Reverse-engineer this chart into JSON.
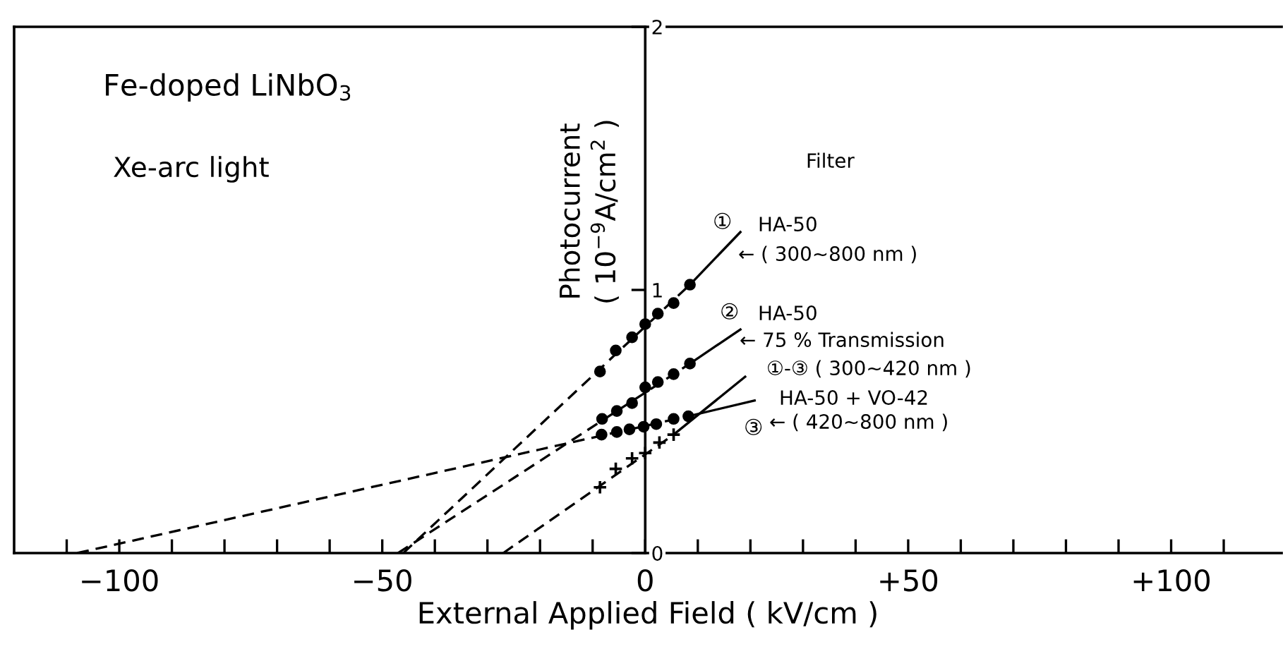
{
  "chart_data": {
    "type": "scatter",
    "xlabel": "External Applied Field ( kV/cm )",
    "ylabel": "Photocurrent\n( 10$^{−9}$A/cm$^{2}$ )",
    "xlim": [
      -120,
      121
    ],
    "ylim": [
      0,
      2
    ],
    "xticks": [
      {
        "value": -110,
        "label": null
      },
      {
        "value": -100,
        "label": "−100"
      },
      {
        "value": -90,
        "label": null
      },
      {
        "value": -80,
        "label": null
      },
      {
        "value": -70,
        "label": null
      },
      {
        "value": -60,
        "label": null
      },
      {
        "value": -50,
        "label": "−50"
      },
      {
        "value": -40,
        "label": null
      },
      {
        "value": -30,
        "label": null
      },
      {
        "value": -20,
        "label": null
      },
      {
        "value": -10,
        "label": null
      },
      0,
      {
        "value": 10,
        "label": null
      },
      {
        "value": 20,
        "label": null
      },
      {
        "value": 30,
        "label": null
      },
      {
        "value": 40,
        "label": null
      },
      {
        "value": 50,
        "label": "+50"
      },
      {
        "value": 60,
        "label": null
      },
      {
        "value": 70,
        "label": null
      },
      {
        "value": 80,
        "label": null
      },
      {
        "value": 90,
        "label": null
      },
      {
        "value": 100,
        "label": "+100"
      },
      {
        "value": 110,
        "label": null
      }
    ],
    "yticks": [
      0,
      1,
      2
    ],
    "grid": false,
    "legend": false,
    "series": [
      {
        "marker": "circle",
        "color": "#000000",
        "x": [
          -8.6,
          -5.6,
          -2.5,
          0,
          2.4,
          5.4,
          8.5
        ],
        "values": [
          0.69,
          0.77,
          0.82,
          0.87,
          0.91,
          0.95,
          1.02
        ]
      },
      {
        "marker": "circle",
        "color": "#000000",
        "x": [
          -8.2,
          -5.4,
          -2.5,
          0,
          2.4,
          5.4,
          8.5
        ],
        "values": [
          0.51,
          0.54,
          0.57,
          0.63,
          0.65,
          0.68,
          0.72
        ]
      },
      {
        "marker": "circle",
        "color": "#000000",
        "x": [
          -8.3,
          -5.4,
          -3.0,
          -0.3,
          2.1,
          5.4,
          8.2
        ],
        "values": [
          0.45,
          0.46,
          0.47,
          0.48,
          0.49,
          0.51,
          0.52
        ]
      },
      {
        "marker": "cross",
        "color": "#000000",
        "x": [
          -8.6,
          -5.6,
          -2.5,
          0,
          2.7,
          5.4
        ],
        "values": [
          0.25,
          0.32,
          0.36,
          0.38,
          0.42,
          0.45
        ]
      },
      {
        "type": "line",
        "line_style": "dashed",
        "color": "#000000",
        "x": [
          -46,
          8.5
        ],
        "values": [
          0,
          1.02
        ]
      },
      {
        "type": "line",
        "line_style": "dashed",
        "color": "#000000",
        "x": [
          -47,
          8.5
        ],
        "values": [
          0,
          0.72
        ]
      },
      {
        "type": "line",
        "line_style": "dashed",
        "color": "#000000",
        "x": [
          -108,
          8.2
        ],
        "values": [
          0,
          0.52
        ]
      },
      {
        "type": "line",
        "line_style": "dashed",
        "color": "#000000",
        "x": [
          -27,
          5.4
        ],
        "values": [
          0,
          0.45
        ]
      },
      {
        "type": "line",
        "line_style": "solid",
        "color": "#000000",
        "x": [
          8.5,
          18.1
        ],
        "values": [
          1.02,
          1.22
        ]
      },
      {
        "type": "line",
        "line_style": "solid",
        "color": "#000000",
        "x": [
          8.5,
          18.1
        ],
        "values": [
          0.72,
          0.85
        ]
      },
      {
        "type": "line",
        "line_style": "solid",
        "color": "#000000",
        "x": [
          8.2,
          20.8
        ],
        "values": [
          0.52,
          0.58
        ]
      },
      {
        "type": "line",
        "line_style": "solid",
        "color": "#000000",
        "x": [
          5.4,
          19.0
        ],
        "values": [
          0.45,
          0.67
        ]
      }
    ],
    "annotations": [
      "Fe-doped LiNbO$_{3}$",
      "Xe-arc light",
      "Filter",
      "①",
      "HA-50",
      "← ( 300~800 nm )",
      "②",
      "HA-50",
      "← 75 % Transmission",
      "①-③ ( 300~420 nm )",
      "HA-50 + VO-42",
      "③",
      "← ( 420~800 nm )"
    ]
  }
}
